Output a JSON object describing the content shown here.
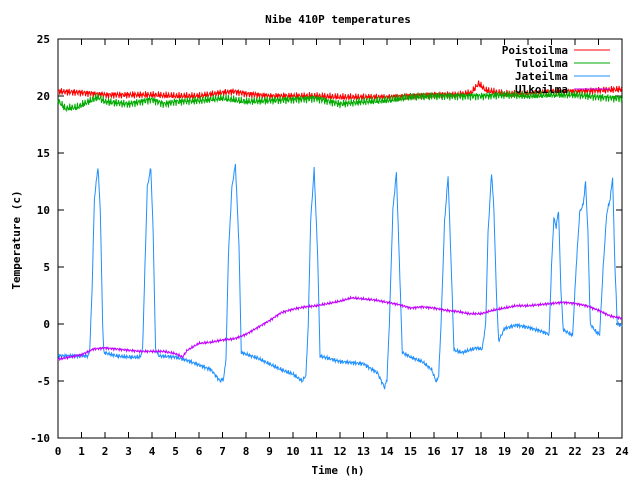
{
  "chart_data": {
    "type": "line",
    "title": "Nibe 410P temperatures",
    "xlabel": "Time (h)",
    "ylabel": "Temperature (c)",
    "xlim": [
      0,
      24
    ],
    "ylim": [
      -10,
      25
    ],
    "xticks": [
      0,
      1,
      2,
      3,
      4,
      5,
      6,
      7,
      8,
      9,
      10,
      11,
      12,
      13,
      14,
      15,
      16,
      17,
      18,
      19,
      20,
      21,
      22,
      23,
      24
    ],
    "yticks": [
      -10,
      -5,
      0,
      5,
      10,
      15,
      20,
      25
    ],
    "grid": false,
    "legend_position": "top-right",
    "series": [
      {
        "name": "Poistoilma",
        "color": "#ff0000",
        "points": [
          [
            0,
            20.4
          ],
          [
            1,
            20.3
          ],
          [
            2,
            20.1
          ],
          [
            3,
            20.1
          ],
          [
            4,
            20.1
          ],
          [
            5,
            20.0
          ],
          [
            6,
            20.0
          ],
          [
            7,
            20.3
          ],
          [
            7.5,
            20.4
          ],
          [
            8,
            20.2
          ],
          [
            9,
            20.0
          ],
          [
            10,
            20.0
          ],
          [
            11,
            20.0
          ],
          [
            12,
            19.9
          ],
          [
            13,
            19.9
          ],
          [
            14,
            19.9
          ],
          [
            15,
            20.0
          ],
          [
            16,
            20.1
          ],
          [
            17,
            20.1
          ],
          [
            17.6,
            20.3
          ],
          [
            17.9,
            21.1
          ],
          [
            18.2,
            20.5
          ],
          [
            19,
            20.2
          ],
          [
            20,
            20.2
          ],
          [
            21,
            20.4
          ],
          [
            22,
            20.4
          ],
          [
            23,
            20.5
          ],
          [
            24,
            20.6
          ]
        ]
      },
      {
        "name": "Tuloilma",
        "color": "#00aa00",
        "points": [
          [
            0,
            19.6
          ],
          [
            0.3,
            18.9
          ],
          [
            0.8,
            19.0
          ],
          [
            1.3,
            19.5
          ],
          [
            1.7,
            19.9
          ],
          [
            2,
            19.5
          ],
          [
            3,
            19.3
          ],
          [
            4,
            19.7
          ],
          [
            4.5,
            19.3
          ],
          [
            5,
            19.5
          ],
          [
            6,
            19.6
          ],
          [
            7,
            19.8
          ],
          [
            8,
            19.5
          ],
          [
            9,
            19.6
          ],
          [
            10,
            19.7
          ],
          [
            11,
            19.8
          ],
          [
            12,
            19.3
          ],
          [
            13,
            19.5
          ],
          [
            14,
            19.6
          ],
          [
            15,
            19.9
          ],
          [
            16,
            20.0
          ],
          [
            17,
            20.0
          ],
          [
            18,
            20.0
          ],
          [
            19,
            20.1
          ],
          [
            20,
            20.0
          ],
          [
            21,
            20.1
          ],
          [
            22,
            20.1
          ],
          [
            23,
            19.9
          ],
          [
            24,
            19.8
          ]
        ]
      },
      {
        "name": "Jateilma",
        "color": "#1f8fff",
        "points": [
          [
            0,
            -2.8
          ],
          [
            0.5,
            -2.8
          ],
          [
            1.3,
            -2.8
          ],
          [
            1.35,
            -2.3
          ],
          [
            1.45,
            3
          ],
          [
            1.55,
            11
          ],
          [
            1.7,
            13.8
          ],
          [
            1.8,
            10
          ],
          [
            1.9,
            0
          ],
          [
            1.95,
            -2.5
          ],
          [
            2.5,
            -2.8
          ],
          [
            3,
            -2.9
          ],
          [
            3.5,
            -2.9
          ],
          [
            3.6,
            -2.2
          ],
          [
            3.7,
            5
          ],
          [
            3.8,
            12
          ],
          [
            3.95,
            13.7
          ],
          [
            4.05,
            8
          ],
          [
            4.15,
            -2.2
          ],
          [
            4.3,
            -2.8
          ],
          [
            5,
            -2.9
          ],
          [
            5.5,
            -3.2
          ],
          [
            6,
            -3.6
          ],
          [
            6.5,
            -4.0
          ],
          [
            6.9,
            -5.0
          ],
          [
            7.05,
            -4.8
          ],
          [
            7.15,
            -3
          ],
          [
            7.25,
            6
          ],
          [
            7.4,
            12
          ],
          [
            7.55,
            14.0
          ],
          [
            7.7,
            7
          ],
          [
            7.8,
            -2.5
          ],
          [
            8.5,
            -3.0
          ],
          [
            9,
            -3.5
          ],
          [
            9.5,
            -4.0
          ],
          [
            10,
            -4.4
          ],
          [
            10.4,
            -5.0
          ],
          [
            10.55,
            -4.5
          ],
          [
            10.65,
            0
          ],
          [
            10.75,
            9
          ],
          [
            10.9,
            13.6
          ],
          [
            11.05,
            6
          ],
          [
            11.15,
            -2.8
          ],
          [
            12,
            -3.3
          ],
          [
            13,
            -3.5
          ],
          [
            13.6,
            -4.3
          ],
          [
            13.9,
            -5.6
          ],
          [
            14,
            -4.8
          ],
          [
            14.1,
            0
          ],
          [
            14.25,
            10
          ],
          [
            14.4,
            13.3
          ],
          [
            14.55,
            4
          ],
          [
            14.65,
            -2.5
          ],
          [
            15,
            -2.9
          ],
          [
            15.5,
            -3.3
          ],
          [
            15.9,
            -4.0
          ],
          [
            16.1,
            -5.1
          ],
          [
            16.2,
            -4.5
          ],
          [
            16.3,
            0
          ],
          [
            16.45,
            9
          ],
          [
            16.6,
            13.0
          ],
          [
            16.75,
            4
          ],
          [
            16.85,
            -2.3
          ],
          [
            17.2,
            -2.5
          ],
          [
            17.5,
            -2.3
          ],
          [
            17.8,
            -2.1
          ],
          [
            18.05,
            -2.2
          ],
          [
            18.2,
            0
          ],
          [
            18.3,
            8
          ],
          [
            18.45,
            13.3
          ],
          [
            18.55,
            10
          ],
          [
            18.65,
            3
          ],
          [
            18.75,
            -1.5
          ],
          [
            19,
            -0.4
          ],
          [
            19.5,
            -0.1
          ],
          [
            20,
            -0.3
          ],
          [
            20.5,
            -0.6
          ],
          [
            20.9,
            -0.9
          ],
          [
            21.0,
            5
          ],
          [
            21.1,
            9.3
          ],
          [
            21.2,
            8.5
          ],
          [
            21.3,
            10.0
          ],
          [
            21.4,
            3
          ],
          [
            21.5,
            -0.5
          ],
          [
            21.9,
            -1.0
          ],
          [
            22.05,
            5
          ],
          [
            22.2,
            9.8
          ],
          [
            22.35,
            10.5
          ],
          [
            22.45,
            12.5
          ],
          [
            22.55,
            8
          ],
          [
            22.65,
            0
          ],
          [
            22.9,
            -0.7
          ],
          [
            23.05,
            -0.9
          ],
          [
            23.2,
            5
          ],
          [
            23.35,
            9.7
          ],
          [
            23.5,
            11
          ],
          [
            23.6,
            12.9
          ],
          [
            23.7,
            5
          ],
          [
            23.8,
            0
          ],
          [
            24,
            -0.2
          ]
        ]
      },
      {
        "name": "Ulkoilma",
        "color": "#c000ff",
        "points": [
          [
            0,
            -3.1
          ],
          [
            0.5,
            -2.9
          ],
          [
            1,
            -2.7
          ],
          [
            1.5,
            -2.2
          ],
          [
            2,
            -2.1
          ],
          [
            2.5,
            -2.2
          ],
          [
            3,
            -2.3
          ],
          [
            3.5,
            -2.4
          ],
          [
            4,
            -2.4
          ],
          [
            4.5,
            -2.4
          ],
          [
            5,
            -2.6
          ],
          [
            5.3,
            -2.9
          ],
          [
            5.5,
            -2.3
          ],
          [
            6,
            -1.7
          ],
          [
            6.5,
            -1.6
          ],
          [
            7,
            -1.4
          ],
          [
            7.5,
            -1.3
          ],
          [
            8,
            -0.9
          ],
          [
            8.5,
            -0.3
          ],
          [
            9,
            0.3
          ],
          [
            9.5,
            1.0
          ],
          [
            10,
            1.3
          ],
          [
            10.5,
            1.5
          ],
          [
            11,
            1.6
          ],
          [
            11.5,
            1.8
          ],
          [
            12,
            2.0
          ],
          [
            12.5,
            2.3
          ],
          [
            13,
            2.2
          ],
          [
            13.5,
            2.1
          ],
          [
            14,
            1.9
          ],
          [
            14.5,
            1.7
          ],
          [
            15,
            1.4
          ],
          [
            15.5,
            1.5
          ],
          [
            16,
            1.4
          ],
          [
            16.5,
            1.2
          ],
          [
            17,
            1.1
          ],
          [
            17.5,
            0.9
          ],
          [
            18,
            0.9
          ],
          [
            18.5,
            1.2
          ],
          [
            19,
            1.4
          ],
          [
            19.5,
            1.6
          ],
          [
            20,
            1.6
          ],
          [
            20.5,
            1.7
          ],
          [
            21,
            1.8
          ],
          [
            21.5,
            1.9
          ],
          [
            22,
            1.8
          ],
          [
            22.5,
            1.6
          ],
          [
            23,
            1.2
          ],
          [
            23.5,
            0.7
          ],
          [
            24,
            0.5
          ]
        ]
      }
    ]
  }
}
